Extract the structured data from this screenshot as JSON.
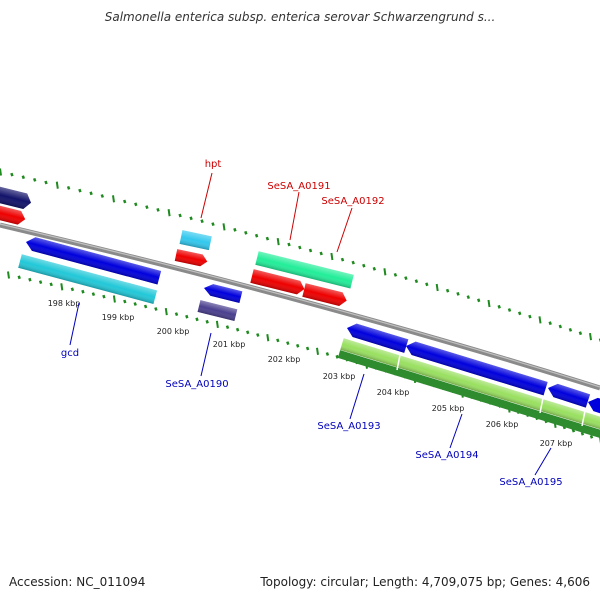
{
  "title": "Salmonella enterica subsp. enterica serovar Schwarzengrund s...",
  "footer": {
    "accession": "Accession: NC_011094",
    "topology": "Topology: circular; Length: 4,709,075 bp; Genes: 4,606"
  },
  "colors": {
    "backbone": "#8a8a8a",
    "tick_green": "#1f8a1f",
    "forward_label": "#cc0000",
    "reverse_label": "#0000bb",
    "gene_blue": "#0000dd",
    "gene_red": "#ee0000",
    "gene_cyan": "#22c8d8",
    "gene_light_blue": "#33c8ee",
    "gene_navy": "#12126a",
    "gene_spring": "#22ee99",
    "gene_slate": "#4a3f8e",
    "gene_lime": "#99e060",
    "gene_green": "#2e8b2e"
  },
  "scale": {
    "labels": [
      "198 kbp",
      "199 kbp",
      "200 kbp",
      "201 kbp",
      "202 kbp",
      "203 kbp",
      "204 kbp",
      "205 kbp",
      "206 kbp",
      "207 kbp"
    ]
  },
  "gene_labels": {
    "hpt": "hpt",
    "a0191": "SeSA_A0191",
    "a0192": "SeSA_A0192",
    "gcd": "gcd",
    "a0190": "SeSA_A0190",
    "a0193": "SeSA_A0193",
    "a0194": "SeSA_A0194",
    "a0195": "SeSA_A0195"
  }
}
